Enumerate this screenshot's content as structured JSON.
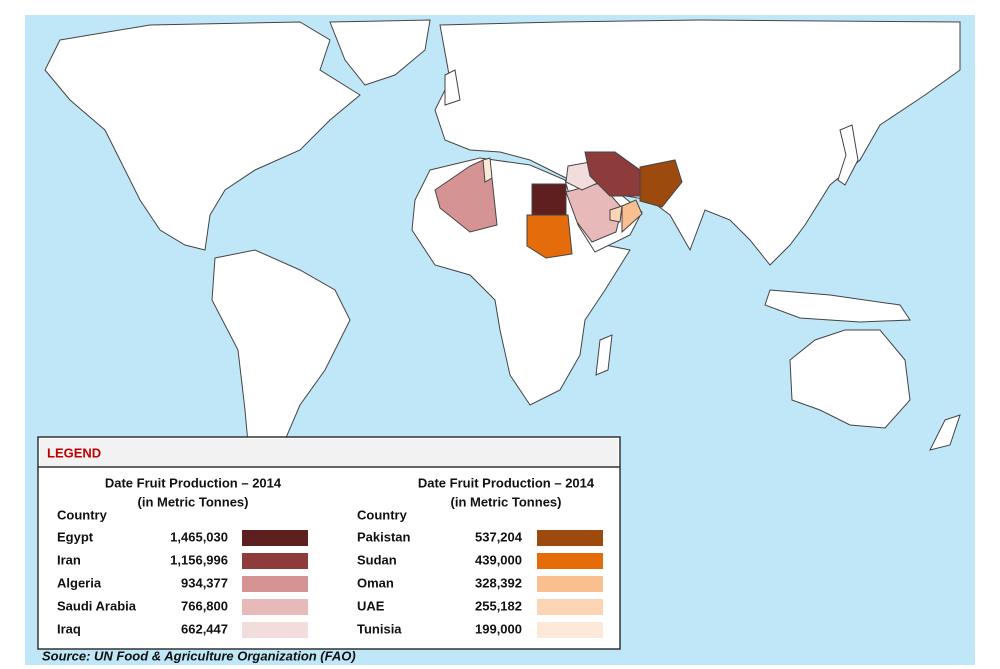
{
  "legend": {
    "title": "LEGEND",
    "columns": [
      {
        "heading": "Date Fruit Production – 2014",
        "subheading": "(in Metric Tonnes)",
        "country_label": "Country",
        "rows": [
          {
            "country": "Egypt",
            "value": "1,465,030",
            "color": "#5e1f1f"
          },
          {
            "country": "Iran",
            "value": "1,156,996",
            "color": "#8e3b3b"
          },
          {
            "country": "Algeria",
            "value": "934,377",
            "color": "#d69393"
          },
          {
            "country": "Saudi Arabia",
            "value": "766,800",
            "color": "#e8b9b9"
          },
          {
            "country": "Iraq",
            "value": "662,447",
            "color": "#f2dcdc"
          }
        ]
      },
      {
        "heading": "Date Fruit Production – 2014",
        "subheading": "(in Metric Tonnes)",
        "country_label": "Country",
        "rows": [
          {
            "country": "Pakistan",
            "value": "537,204",
            "color": "#9c4a0e"
          },
          {
            "country": "Sudan",
            "value": "439,000",
            "color": "#e46c0a"
          },
          {
            "country": "Oman",
            "value": "328,392",
            "color": "#f9bf8f"
          },
          {
            "country": "UAE",
            "value": "255,182",
            "color": "#fbd5b5"
          },
          {
            "country": "Tunisia",
            "value": "199,000",
            "color": "#fde9d9"
          }
        ]
      }
    ]
  },
  "source": "Source: UN Food & Agriculture Organization (FAO)"
}
